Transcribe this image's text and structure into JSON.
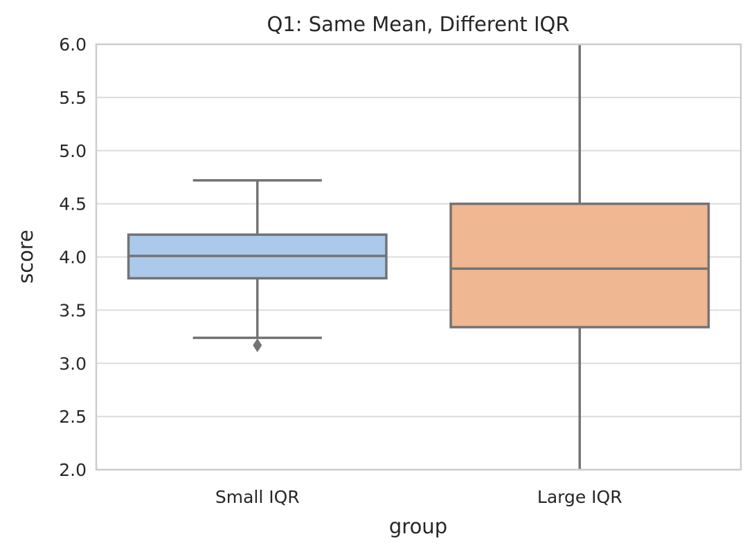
{
  "chart_data": {
    "type": "boxplot",
    "title": "Q1: Same Mean, Different IQR",
    "xlabel": "group",
    "ylabel": "score",
    "ylim": [
      2.0,
      6.0
    ],
    "yticks": [
      "2.0",
      "2.5",
      "3.0",
      "3.5",
      "4.0",
      "4.5",
      "5.0",
      "5.5",
      "6.0"
    ],
    "grid": true,
    "categories": [
      "Small IQR",
      "Large IQR"
    ],
    "boxes": [
      {
        "category": "Small IQR",
        "whisker_low": 3.24,
        "q1": 3.8,
        "median": 4.01,
        "q3": 4.21,
        "whisker_high": 4.72,
        "outliers": [
          3.17
        ],
        "color": "#abc9ea"
      },
      {
        "category": "Large IQR",
        "whisker_low": 2.0,
        "q1": 3.34,
        "median": 3.89,
        "q3": 4.5,
        "whisker_high": 6.0,
        "outliers": [],
        "color": "#efb792"
      }
    ],
    "line_color": "#737373"
  }
}
